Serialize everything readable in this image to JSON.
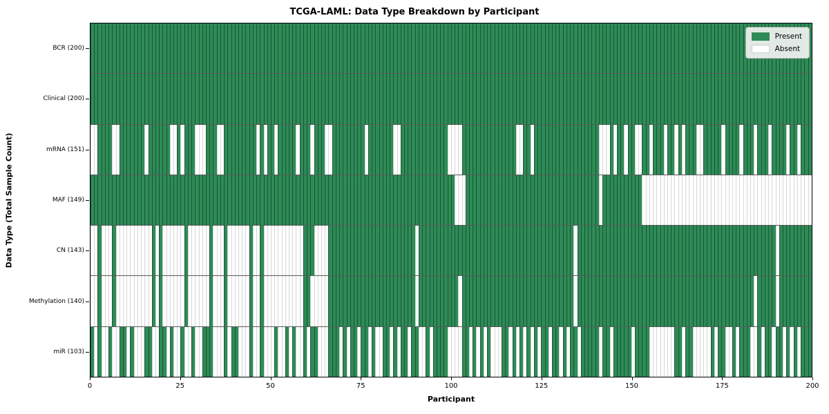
{
  "title": "TCGA-LAML: Data Type Breakdown by Participant",
  "chart_data": {
    "type": "heatmap",
    "title": "TCGA-LAML: Data Type Breakdown by Participant",
    "xlabel": "Participant",
    "ylabel": "Data Type (Total Sample Count)",
    "x_range": [
      0,
      200
    ],
    "n_participants": 200,
    "x_ticks": [
      0,
      25,
      50,
      75,
      100,
      125,
      150,
      175,
      200
    ],
    "present_color": "#2e8b57",
    "absent_color": "#ffffff",
    "legend": {
      "present_label": "Present",
      "absent_label": "Absent",
      "position": "upper right"
    },
    "rows": [
      {
        "label": "BCR (200)",
        "data_type": "BCR",
        "present_count": 200,
        "absent": []
      },
      {
        "label": "Clinical (200)",
        "data_type": "Clinical",
        "present_count": 200,
        "absent": []
      },
      {
        "label": "mRNA (151)",
        "data_type": "mRNA",
        "present_count": 151,
        "absent": [
          0,
          1,
          6,
          7,
          15,
          22,
          23,
          25,
          29,
          30,
          31,
          35,
          36,
          46,
          48,
          51,
          57,
          61,
          65,
          66,
          76,
          84,
          85,
          99,
          100,
          101,
          102,
          118,
          119,
          122,
          141,
          142,
          143,
          145,
          148,
          151,
          152,
          155,
          159,
          162,
          164,
          168,
          169,
          175,
          180,
          184,
          188,
          193,
          196
        ]
      },
      {
        "label": "MAF (149)",
        "data_type": "MAF",
        "present_count": 149,
        "absent": [
          101,
          102,
          103,
          141,
          153,
          154,
          155,
          156,
          157,
          158,
          159,
          160,
          161,
          162,
          163,
          164,
          165,
          166,
          167,
          168,
          169,
          170,
          171,
          172,
          173,
          174,
          175,
          176,
          177,
          178,
          179,
          180,
          181,
          182,
          183,
          184,
          185,
          186,
          187,
          188,
          189,
          190,
          191,
          192,
          193,
          194,
          195,
          196,
          197,
          198,
          199
        ]
      },
      {
        "label": "CN (143)",
        "data_type": "CN",
        "present_count": 143,
        "absent": [
          0,
          1,
          3,
          4,
          5,
          7,
          8,
          9,
          10,
          11,
          12,
          13,
          14,
          15,
          16,
          18,
          20,
          21,
          22,
          23,
          24,
          25,
          27,
          28,
          29,
          30,
          31,
          32,
          34,
          35,
          36,
          38,
          39,
          40,
          41,
          42,
          43,
          45,
          46,
          48,
          49,
          50,
          51,
          52,
          53,
          54,
          55,
          56,
          57,
          58,
          62,
          63,
          64,
          65,
          90,
          134,
          190
        ]
      },
      {
        "label": "Methylation (140)",
        "data_type": "Methylation",
        "present_count": 140,
        "absent": [
          0,
          1,
          3,
          4,
          5,
          7,
          8,
          9,
          10,
          11,
          12,
          13,
          14,
          15,
          16,
          18,
          20,
          21,
          22,
          23,
          24,
          25,
          27,
          28,
          29,
          30,
          31,
          32,
          34,
          35,
          36,
          38,
          39,
          40,
          41,
          42,
          43,
          45,
          46,
          48,
          49,
          50,
          51,
          52,
          53,
          54,
          55,
          56,
          57,
          58,
          61,
          62,
          63,
          64,
          65,
          90,
          102,
          134,
          184,
          190
        ]
      },
      {
        "label": "miR (103)",
        "data_type": "miR",
        "present_count": 103,
        "absent": [
          1,
          3,
          4,
          6,
          7,
          10,
          12,
          13,
          14,
          17,
          18,
          21,
          23,
          24,
          26,
          27,
          29,
          30,
          34,
          35,
          36,
          38,
          41,
          42,
          43,
          45,
          46,
          48,
          49,
          50,
          52,
          53,
          55,
          57,
          58,
          60,
          63,
          64,
          65,
          69,
          71,
          74,
          77,
          79,
          80,
          83,
          85,
          88,
          91,
          92,
          94,
          99,
          100,
          101,
          102,
          105,
          107,
          109,
          111,
          112,
          113,
          116,
          118,
          120,
          122,
          124,
          127,
          130,
          132,
          135,
          141,
          144,
          150,
          155,
          156,
          157,
          158,
          159,
          160,
          161,
          164,
          167,
          168,
          169,
          170,
          171,
          173,
          176,
          177,
          179,
          183,
          184,
          186,
          189,
          192,
          194,
          196
        ]
      }
    ]
  }
}
